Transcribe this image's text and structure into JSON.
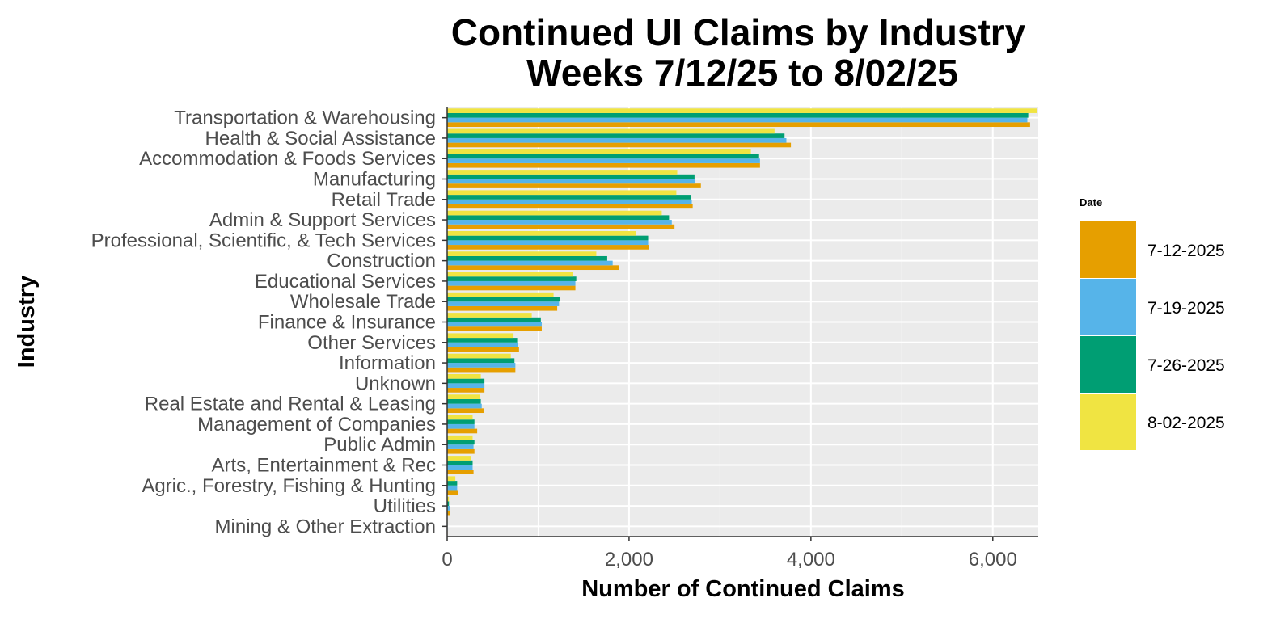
{
  "chart_data": {
    "type": "bar",
    "orientation": "horizontal",
    "title_lines": [
      "Continued UI Claims by Industry",
      "Weeks 7/12/25 to 8/02/25"
    ],
    "xlabel": "Number of Continued Claims",
    "ylabel": "Industry",
    "xlim": [
      0,
      6500
    ],
    "x_ticks": [
      0,
      2000,
      4000,
      6000
    ],
    "x_tick_labels": [
      "0",
      "2,000",
      "4,000",
      "6,000"
    ],
    "grid": true,
    "legend": {
      "title": "Date",
      "placement": "right",
      "entries": [
        "7-12-2025",
        "7-19-2025",
        "7-26-2025",
        "8-02-2025"
      ]
    },
    "categories": [
      "Transportation & Warehousing",
      "Health & Social Assistance",
      "Accommodation & Foods Services",
      "Manufacturing",
      "Retail Trade",
      "Admin & Support Services",
      "Professional, Scientific, & Tech Services",
      "Construction",
      "Educational Services",
      "Wholesale Trade",
      "Finance & Insurance",
      "Other Services",
      "Information",
      "Unknown",
      "Real Estate and Rental & Leasing",
      "Management of Companies",
      "Public Admin",
      "Arts, Entertainment & Rec",
      "Agric., Forestry, Fishing & Hunting",
      "Utilities",
      "Mining & Other Extraction"
    ],
    "series": [
      {
        "name": "7-12-2025",
        "color": "#E69F00",
        "values": [
          6410,
          3780,
          3440,
          2790,
          2700,
          2500,
          2220,
          1890,
          1410,
          1210,
          1040,
          790,
          750,
          410,
          400,
          330,
          300,
          290,
          120,
          30,
          5
        ]
      },
      {
        "name": "7-19-2025",
        "color": "#56B4E9",
        "values": [
          6380,
          3730,
          3440,
          2730,
          2690,
          2470,
          2210,
          1820,
          1410,
          1230,
          1040,
          780,
          750,
          410,
          380,
          300,
          290,
          280,
          110,
          30,
          5
        ]
      },
      {
        "name": "7-26-2025",
        "color": "#009E73",
        "values": [
          6390,
          3710,
          3430,
          2720,
          2680,
          2440,
          2210,
          1760,
          1420,
          1240,
          1030,
          770,
          740,
          410,
          370,
          300,
          300,
          280,
          110,
          20,
          5
        ]
      },
      {
        "name": "8-02-2025",
        "color": "#F0E442",
        "values": [
          6490,
          3600,
          3340,
          2530,
          2520,
          2360,
          2080,
          1640,
          1380,
          1170,
          930,
          730,
          700,
          370,
          360,
          280,
          280,
          260,
          90,
          20,
          5
        ]
      }
    ]
  }
}
